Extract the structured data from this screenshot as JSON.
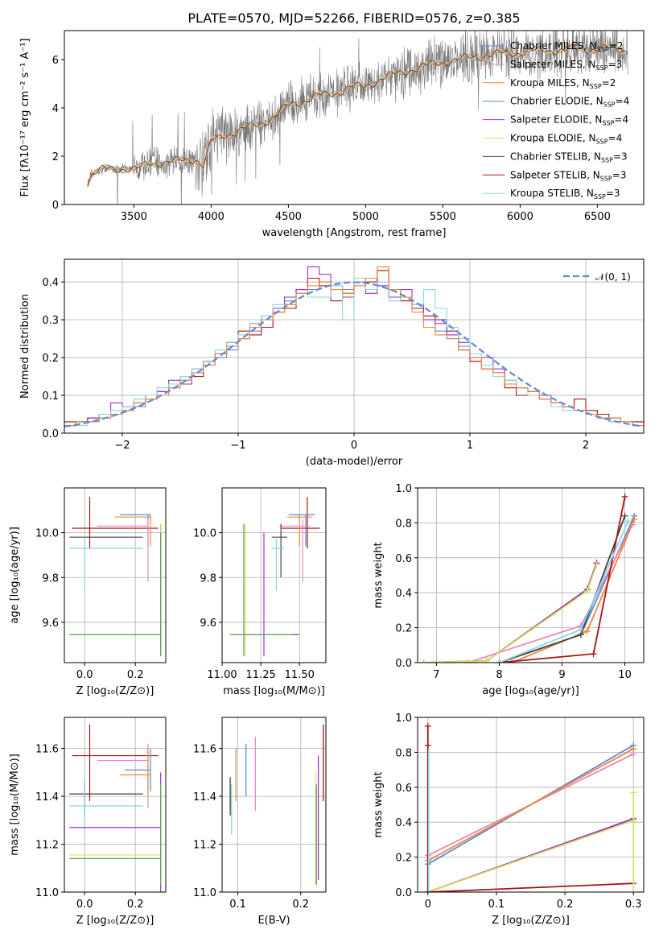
{
  "title": "PLATE=0570, MJD=52266, FIBERID=0576, z=0.385",
  "colors": {
    "Chabrier MILES": "#5b8bd9",
    "Salpeter MILES": "#e887c0",
    "Kroupa MILES": "#ee8833",
    "Chabrier ELODIE": "#5aa35a",
    "Salpeter ELODIE": "#9b2fc9",
    "Kroupa ELODIE": "#d9e05a",
    "Chabrier STELIB": "#444444",
    "Salpeter STELIB": "#aa1111",
    "Kroupa STELIB": "#88d8e0",
    "data": "#777777",
    "normal": "#5b8bd9"
  },
  "legend_labels": [
    {
      "name": "Chabrier MILES",
      "text": "Chabrier MILES, N",
      "sub": "SSP",
      "eq": "=2"
    },
    {
      "name": "Salpeter MILES",
      "text": "Salpeter MILES, N",
      "sub": "SSP",
      "eq": "=3"
    },
    {
      "name": "Kroupa MILES",
      "text": "Kroupa MILES, N",
      "sub": "SSP",
      "eq": "=2"
    },
    {
      "name": "Chabrier ELODIE",
      "text": "Chabrier ELODIE, N",
      "sub": "SSP",
      "eq": "=4"
    },
    {
      "name": "Salpeter ELODIE",
      "text": "Salpeter ELODIE, N",
      "sub": "SSP",
      "eq": "=4"
    },
    {
      "name": "Kroupa ELODIE",
      "text": "Kroupa ELODIE, N",
      "sub": "SSP",
      "eq": "=4"
    },
    {
      "name": "Chabrier STELIB",
      "text": "Chabrier STELIB, N",
      "sub": "SSP",
      "eq": "=3"
    },
    {
      "name": "Salpeter STELIB",
      "text": "Salpeter STELIB, N",
      "sub": "SSP",
      "eq": "=3"
    },
    {
      "name": "Kroupa STELIB",
      "text": "Kroupa STELIB, N",
      "sub": "SSP",
      "eq": "=3"
    }
  ],
  "chart_data": [
    {
      "id": "spectrum",
      "type": "line",
      "xlabel": "wavelength [Angstrom, rest frame]",
      "ylabel": "Flux [fλ10⁻¹⁷ erg cm⁻² s⁻¹ A⁻¹]",
      "xlim": [
        3050,
        6800
      ],
      "ylim": [
        0,
        7.2
      ],
      "xticks": [
        3500,
        4000,
        4500,
        5000,
        5500,
        6000,
        6500
      ],
      "yticks": [
        0,
        2,
        4,
        6
      ],
      "model_trend": {
        "x": [
          3200,
          3230,
          3300,
          3450,
          3520,
          3600,
          3700,
          3800,
          3900,
          3950,
          4000,
          4100,
          4200,
          4300,
          4400,
          4500,
          4600,
          4700,
          4800,
          4900,
          5000,
          5100,
          5200,
          5300,
          5400,
          5500,
          5600,
          5700,
          5800,
          5900,
          6000,
          6100,
          6200,
          6300,
          6400,
          6500,
          6600,
          6700
        ],
        "y": [
          0.9,
          1.3,
          1.45,
          1.5,
          1.45,
          1.7,
          1.75,
          1.8,
          1.9,
          1.6,
          2.6,
          2.9,
          3.1,
          3.3,
          3.6,
          4.1,
          4.3,
          4.5,
          4.6,
          4.85,
          4.9,
          5.2,
          5.4,
          5.6,
          5.75,
          5.9,
          6.0,
          6.1,
          6.2,
          6.25,
          6.3,
          6.35,
          6.4,
          6.4,
          6.45,
          6.45,
          6.45,
          6.4
        ]
      }
    },
    {
      "id": "residuals",
      "type": "line",
      "xlabel": "(data-model)/error",
      "ylabel": "Normed distribution",
      "xlim": [
        -2.5,
        2.5
      ],
      "ylim": [
        0,
        0.46
      ],
      "xticks": [
        -2,
        -1,
        0,
        1,
        2
      ],
      "yticks": [
        0,
        0.1,
        0.2,
        0.3,
        0.4
      ],
      "legend": "𝒩(0, 1)",
      "bin_width": 0.1,
      "series": [
        {
          "name": "Chabrier MILES",
          "values": [
            0.02,
            0.03,
            0.03,
            0.04,
            0.05,
            0.06,
            0.07,
            0.09,
            0.1,
            0.12,
            0.14,
            0.16,
            0.18,
            0.2,
            0.22,
            0.25,
            0.27,
            0.3,
            0.33,
            0.35,
            0.37,
            0.38,
            0.4,
            0.39,
            0.38,
            0.4,
            0.41,
            0.39,
            0.38,
            0.36,
            0.33,
            0.3,
            0.27,
            0.25,
            0.23,
            0.2,
            0.18,
            0.16,
            0.14,
            0.12,
            0.11,
            0.09,
            0.08,
            0.07,
            0.06,
            0.05,
            0.04,
            0.03,
            0.03,
            0.02
          ]
        },
        {
          "name": "Salpeter STELIB",
          "values": [
            0.03,
            0.03,
            0.04,
            0.05,
            0.05,
            0.07,
            0.08,
            0.1,
            0.11,
            0.13,
            0.15,
            0.15,
            0.19,
            0.21,
            0.24,
            0.27,
            0.26,
            0.28,
            0.32,
            0.33,
            0.38,
            0.41,
            0.39,
            0.35,
            0.37,
            0.39,
            0.4,
            0.43,
            0.36,
            0.35,
            0.33,
            0.31,
            0.3,
            0.27,
            0.22,
            0.19,
            0.17,
            0.16,
            0.12,
            0.1,
            0.1,
            0.09,
            0.08,
            0.07,
            0.09,
            0.06,
            0.05,
            0.04,
            0.03,
            0.03
          ]
        },
        {
          "name": "Salpeter ELODIE",
          "values": [
            0.02,
            0.03,
            0.04,
            0.05,
            0.08,
            0.07,
            0.08,
            0.1,
            0.11,
            0.14,
            0.13,
            0.17,
            0.19,
            0.21,
            0.23,
            0.25,
            0.29,
            0.31,
            0.33,
            0.36,
            0.38,
            0.44,
            0.42,
            0.38,
            0.36,
            0.41,
            0.37,
            0.39,
            0.36,
            0.38,
            0.34,
            0.3,
            0.29,
            0.26,
            0.24,
            0.2,
            0.2,
            0.17,
            0.13,
            0.12,
            0.11,
            0.1,
            0.08,
            0.07,
            0.06,
            0.05,
            0.04,
            0.03,
            0.03,
            0.02
          ]
        },
        {
          "name": "Kroupa STELIB",
          "values": [
            0.02,
            0.02,
            0.03,
            0.05,
            0.06,
            0.07,
            0.09,
            0.1,
            0.12,
            0.13,
            0.15,
            0.17,
            0.19,
            0.22,
            0.24,
            0.26,
            0.29,
            0.31,
            0.34,
            0.34,
            0.37,
            0.36,
            0.36,
            0.39,
            0.3,
            0.41,
            0.38,
            0.4,
            0.35,
            0.36,
            0.34,
            0.38,
            0.33,
            0.28,
            0.25,
            0.21,
            0.18,
            0.15,
            0.14,
            0.12,
            0.1,
            0.09,
            0.07,
            0.06,
            0.06,
            0.05,
            0.04,
            0.03,
            0.03,
            0.02
          ]
        },
        {
          "name": "Kroupa MILES",
          "values": [
            0.02,
            0.03,
            0.03,
            0.04,
            0.05,
            0.06,
            0.08,
            0.09,
            0.1,
            0.12,
            0.14,
            0.16,
            0.18,
            0.21,
            0.23,
            0.25,
            0.28,
            0.3,
            0.32,
            0.34,
            0.37,
            0.39,
            0.4,
            0.38,
            0.37,
            0.39,
            0.41,
            0.44,
            0.38,
            0.36,
            0.32,
            0.28,
            0.26,
            0.25,
            0.22,
            0.2,
            0.17,
            0.16,
            0.13,
            0.12,
            0.11,
            0.09,
            0.08,
            0.07,
            0.06,
            0.05,
            0.04,
            0.04,
            0.03,
            0.02
          ]
        }
      ],
      "normal_curve": {
        "mu": 0,
        "sigma": 1
      }
    },
    {
      "id": "age_vs_Z",
      "type": "scatter",
      "xlabel": "Z [log₁₀(Z/Z⊙)]",
      "ylabel": "age  [log₁₀(age/yr)]",
      "xlim": [
        -0.08,
        0.32
      ],
      "ylim": [
        9.42,
        10.2
      ],
      "xticks": [
        0.0,
        0.2
      ],
      "yticks": [
        9.6,
        9.8,
        10.0
      ]
    },
    {
      "id": "age_vs_mass",
      "type": "scatter",
      "xlabel": "mass [log₁₀(M/M⊙)]",
      "xlim": [
        11.0,
        11.67
      ],
      "ylim": [
        9.42,
        10.2
      ],
      "xticks": [
        11.0,
        11.25,
        11.5
      ],
      "yticks": [
        9.6,
        9.8,
        10.0
      ]
    },
    {
      "id": "massweight_vs_age",
      "type": "line",
      "xlabel": "age  [log₁₀(age/yr)]",
      "ylabel": "mass weight",
      "xlim": [
        6.7,
        10.3
      ],
      "ylim": [
        0,
        1.0
      ],
      "xticks": [
        7,
        8,
        9,
        10
      ],
      "yticks": [
        0.0,
        0.2,
        0.4,
        0.6,
        0.8,
        1.0
      ],
      "series": [
        {
          "name": "Chabrier MILES",
          "x": [
            8.0,
            9.3,
            10.15
          ],
          "y": [
            0.0,
            0.16,
            0.84
          ]
        },
        {
          "name": "Salpeter MILES",
          "x": [
            7.5,
            9.3,
            10.12
          ],
          "y": [
            0.0,
            0.21,
            0.79
          ]
        },
        {
          "name": "Kroupa MILES",
          "x": [
            8.2,
            9.4,
            10.15
          ],
          "y": [
            0.0,
            0.18,
            0.82
          ]
        },
        {
          "name": "Chabrier ELODIE",
          "x": [
            6.8,
            7.8,
            9.4,
            9.55
          ],
          "y": [
            0.0,
            0.01,
            0.42,
            0.57
          ]
        },
        {
          "name": "Salpeter ELODIE",
          "x": [
            6.8,
            7.8,
            9.4,
            9.55
          ],
          "y": [
            0.0,
            0.01,
            0.42,
            0.57
          ]
        },
        {
          "name": "Kroupa ELODIE",
          "x": [
            6.8,
            7.8,
            9.4,
            9.55
          ],
          "y": [
            0.0,
            0.01,
            0.41,
            0.56
          ]
        },
        {
          "name": "Chabrier STELIB",
          "x": [
            8.0,
            9.3,
            10.0
          ],
          "y": [
            0.0,
            0.16,
            0.84
          ]
        },
        {
          "name": "Salpeter STELIB",
          "x": [
            8.0,
            9.5,
            10.0
          ],
          "y": [
            0.0,
            0.05,
            0.95
          ]
        },
        {
          "name": "Kroupa STELIB",
          "x": [
            8.0,
            9.3,
            10.05
          ],
          "y": [
            0.0,
            0.19,
            0.81
          ]
        }
      ]
    },
    {
      "id": "mass_vs_Z",
      "type": "scatter",
      "xlabel": "Z [log₁₀(Z/Z⊙)]",
      "ylabel": "mass [log₁₀(M/M⊙)]",
      "xlim": [
        -0.08,
        0.32
      ],
      "ylim": [
        11.0,
        11.73
      ],
      "xticks": [
        0.0,
        0.2
      ],
      "yticks": [
        11.0,
        11.2,
        11.4,
        11.6
      ]
    },
    {
      "id": "mass_vs_EBV",
      "type": "scatter",
      "xlabel": "E(B-V)",
      "xlim": [
        0.075,
        0.24
      ],
      "ylim": [
        11.0,
        11.73
      ],
      "xticks": [
        0.1,
        0.2
      ],
      "yticks": [
        11.0,
        11.2,
        11.4,
        11.6
      ]
    },
    {
      "id": "massweight_vs_Z",
      "type": "line",
      "xlabel": "Z [log₁₀(Z/Z⊙)]",
      "ylabel": "mass weight",
      "xlim": [
        -0.015,
        0.315
      ],
      "ylim": [
        0,
        1.0
      ],
      "xticks": [
        0.0,
        0.1,
        0.2,
        0.3
      ],
      "yticks": [
        0.0,
        0.2,
        0.4,
        0.6,
        0.8,
        1.0
      ],
      "series": [
        {
          "name": "Chabrier MILES",
          "x": [
            0.0,
            0.3
          ],
          "y": [
            0.16,
            0.84
          ]
        },
        {
          "name": "Salpeter MILES",
          "x": [
            0.0,
            0.3
          ],
          "y": [
            0.21,
            0.79
          ]
        },
        {
          "name": "Kroupa MILES",
          "x": [
            0.0,
            0.3
          ],
          "y": [
            0.18,
            0.82
          ]
        },
        {
          "name": "Chabrier ELODIE",
          "x": [
            0.0,
            0.3
          ],
          "y": [
            0.0,
            0.42
          ]
        },
        {
          "name": "Salpeter ELODIE",
          "x": [
            0.0,
            0.3
          ],
          "y": [
            0.0,
            0.42
          ]
        },
        {
          "name": "Kroupa ELODIE",
          "x": [
            0.0,
            0.3
          ],
          "y": [
            0.0,
            0.41
          ]
        },
        {
          "name": "Salpeter STELIB",
          "x": [
            0.0,
            0.3
          ],
          "y": [
            0.0,
            0.05
          ]
        }
      ]
    }
  ]
}
